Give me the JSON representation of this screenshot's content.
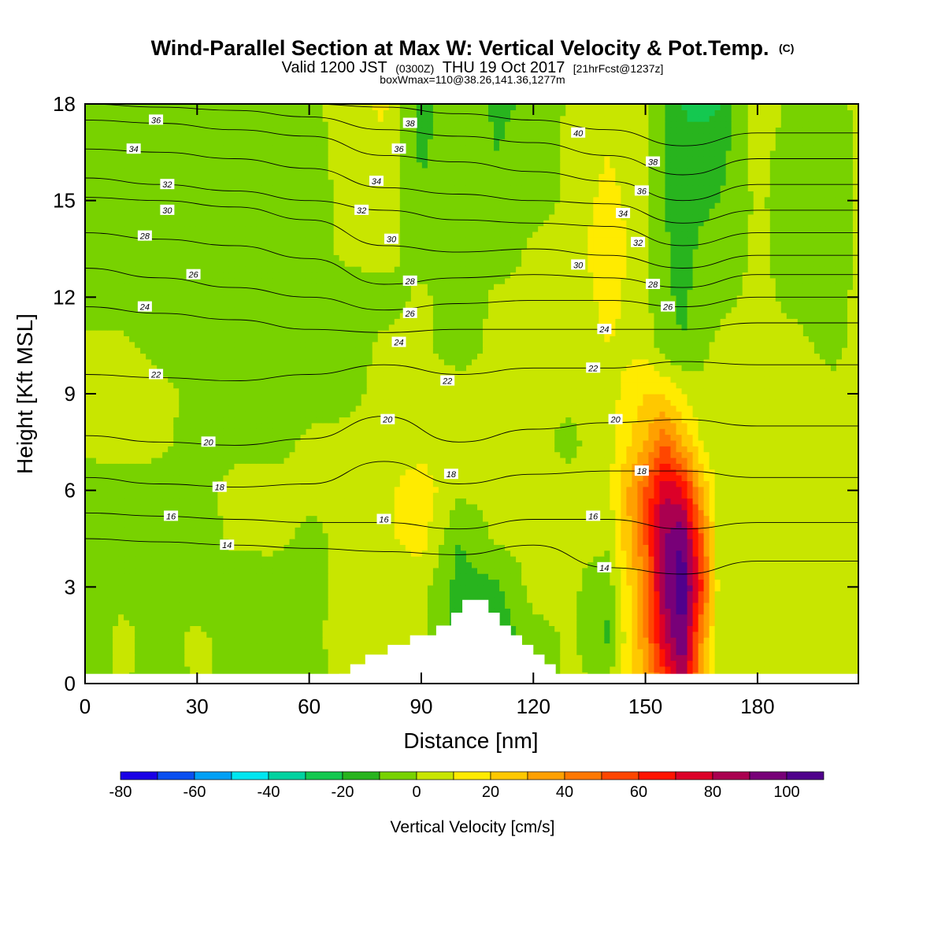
{
  "titles": {
    "main": "Wind-Parallel Section at Max W: Vertical Velocity & Pot.Temp.",
    "main_suffix": "(C)",
    "sub_part1": "Valid 1200 JST",
    "sub_part2": "(0300Z)",
    "sub_part3": "THU 19 Oct 2017",
    "sub_part4": "[21hrFcst@1237z]",
    "sub2": "boxWmax=110@38.26,141.36,1277m"
  },
  "chart_data": {
    "type": "heatmap",
    "title": "Wind-Parallel Section at Max W: Vertical Velocity & Pot.Temp. (C)",
    "xlabel": "Distance [nm]",
    "ylabel": "Height [Kft MSL]",
    "xlim": [
      0,
      207
    ],
    "ylim": [
      0,
      18
    ],
    "x_ticks": [
      0,
      30,
      60,
      90,
      120,
      150,
      180
    ],
    "y_ticks": [
      0,
      3,
      6,
      9,
      12,
      15,
      18
    ],
    "colorbar": {
      "title": "Vertical Velocity [cm/s]",
      "levels": [
        -80,
        -70,
        -60,
        -50,
        -40,
        -30,
        -20,
        -10,
        0,
        10,
        20,
        30,
        40,
        50,
        60,
        70,
        80,
        90,
        100
      ],
      "tick_labels": [
        "-80",
        "-60",
        "-40",
        "-20",
        "0",
        "20",
        "40",
        "60",
        "80",
        "100"
      ],
      "colors": [
        "#1a00e6",
        "#0a50f0",
        "#00a0f5",
        "#00e6f0",
        "#00d2a0",
        "#14c850",
        "#28b41e",
        "#78d200",
        "#c8e600",
        "#ffeb00",
        "#ffc800",
        "#ffa000",
        "#ff7800",
        "#ff4600",
        "#ff1400",
        "#dc0028",
        "#aa0050",
        "#780078",
        "#50008c"
      ]
    },
    "vertical_velocity_grid": {
      "x": [
        0,
        10,
        20,
        30,
        40,
        50,
        60,
        70,
        80,
        90,
        100,
        110,
        120,
        130,
        140,
        150,
        155,
        160,
        165,
        170,
        180,
        190,
        200,
        207
      ],
      "y": [
        0.3,
        1.5,
        3,
        4.5,
        6,
        7.5,
        9,
        10.5,
        12,
        13.5,
        15,
        16.5,
        18
      ],
      "values_cm_s": [
        [
          -4,
          2,
          -6,
          2,
          -4,
          -4,
          -4,
          4,
          2,
          2,
          -6,
          -8,
          -4,
          2,
          -2,
          30,
          60,
          90,
          30,
          2,
          2,
          2,
          2,
          2
        ],
        [
          -4,
          2,
          -4,
          2,
          -4,
          -4,
          -4,
          6,
          4,
          2,
          -12,
          -18,
          -4,
          2,
          -12,
          40,
          80,
          100,
          40,
          2,
          2,
          2,
          2,
          2
        ],
        [
          -6,
          -2,
          -4,
          -6,
          -6,
          -4,
          -4,
          4,
          6,
          4,
          -14,
          -12,
          4,
          2,
          -6,
          40,
          90,
          110,
          60,
          2,
          2,
          2,
          2,
          2
        ],
        [
          -6,
          -4,
          -6,
          -6,
          2,
          2,
          -2,
          2,
          8,
          14,
          -10,
          2,
          2,
          2,
          2,
          50,
          90,
          100,
          50,
          2,
          2,
          2,
          2,
          2
        ],
        [
          -4,
          -4,
          -4,
          -4,
          4,
          4,
          2,
          2,
          8,
          16,
          2,
          2,
          2,
          2,
          6,
          50,
          80,
          70,
          30,
          2,
          2,
          2,
          2,
          2
        ],
        [
          2,
          4,
          2,
          -4,
          -4,
          -4,
          2,
          2,
          4,
          6,
          2,
          2,
          2,
          -2,
          6,
          30,
          50,
          30,
          10,
          2,
          2,
          2,
          2,
          2
        ],
        [
          6,
          6,
          4,
          -4,
          -4,
          -6,
          -4,
          -2,
          2,
          2,
          4,
          2,
          2,
          2,
          6,
          20,
          20,
          10,
          2,
          2,
          2,
          2,
          2,
          2
        ],
        [
          2,
          2,
          -4,
          -6,
          -4,
          -6,
          -6,
          -4,
          2,
          2,
          -4,
          2,
          2,
          2,
          10,
          6,
          -6,
          -10,
          -2,
          2,
          2,
          2,
          -2,
          2
        ],
        [
          -4,
          -4,
          -4,
          -6,
          -4,
          -6,
          -6,
          -4,
          -4,
          2,
          -6,
          2,
          2,
          2,
          14,
          2,
          -8,
          -12,
          -6,
          -2,
          2,
          -2,
          -4,
          2
        ],
        [
          -4,
          -4,
          -6,
          -8,
          -6,
          -4,
          -4,
          2,
          4,
          -4,
          -4,
          -6,
          2,
          4,
          18,
          2,
          -8,
          -14,
          -8,
          -6,
          2,
          -4,
          -6,
          2
        ],
        [
          -6,
          -6,
          -8,
          -8,
          -6,
          -4,
          -4,
          2,
          6,
          -8,
          -2,
          -8,
          -4,
          2,
          14,
          2,
          -10,
          -16,
          -12,
          -10,
          2,
          -6,
          -6,
          2
        ],
        [
          -6,
          -6,
          -8,
          -8,
          -6,
          -4,
          -4,
          4,
          8,
          -12,
          -2,
          -10,
          -6,
          2,
          10,
          2,
          -10,
          -18,
          -14,
          -14,
          4,
          -6,
          -6,
          2
        ],
        [
          -6,
          -6,
          -8,
          -8,
          -6,
          -4,
          -4,
          6,
          12,
          -14,
          -2,
          -12,
          -8,
          2,
          8,
          2,
          -8,
          -20,
          -24,
          -20,
          8,
          -4,
          -4,
          2
        ]
      ]
    },
    "potential_temperature_contours": [
      {
        "label": "14",
        "x": [
          0,
          20,
          40,
          60,
          80,
          100,
          120,
          140,
          160,
          180,
          207
        ],
        "y": [
          4.5,
          4.4,
          4.3,
          4.2,
          4.1,
          4.0,
          4.3,
          3.6,
          3.4,
          3.8,
          3.8
        ]
      },
      {
        "label": "16",
        "x": [
          0,
          20,
          40,
          60,
          80,
          100,
          120,
          140,
          160,
          180,
          207
        ],
        "y": [
          5.3,
          5.2,
          5.1,
          5.0,
          5.0,
          4.8,
          5.1,
          5.1,
          4.8,
          5.0,
          5.0
        ]
      },
      {
        "label": "18",
        "x": [
          0,
          20,
          40,
          60,
          80,
          100,
          120,
          140,
          160,
          180,
          207
        ],
        "y": [
          6.4,
          6.2,
          6.1,
          6.2,
          6.9,
          6.2,
          6.5,
          6.6,
          6.6,
          6.4,
          6.4
        ]
      },
      {
        "label": "20",
        "x": [
          0,
          20,
          40,
          60,
          80,
          100,
          120,
          140,
          160,
          180,
          207
        ],
        "y": [
          7.7,
          7.5,
          7.4,
          7.6,
          8.3,
          7.5,
          7.9,
          8.1,
          8.2,
          8.0,
          8.0
        ]
      },
      {
        "label": "22",
        "x": [
          0,
          20,
          40,
          60,
          80,
          100,
          120,
          140,
          160,
          180,
          207
        ],
        "y": [
          9.6,
          9.5,
          9.4,
          9.6,
          9.9,
          9.6,
          9.8,
          9.8,
          10.0,
          9.9,
          9.9
        ]
      },
      {
        "label": "24",
        "x": [
          0,
          20,
          40,
          60,
          80,
          100,
          120,
          140,
          160,
          180,
          207
        ],
        "y": [
          11.7,
          11.5,
          11.3,
          11.0,
          10.9,
          11.0,
          11.0,
          11.0,
          11.0,
          11.2,
          11.2
        ]
      },
      {
        "label": "26",
        "x": [
          0,
          20,
          40,
          60,
          80,
          100,
          120,
          140,
          160,
          180,
          207
        ],
        "y": [
          12.9,
          12.6,
          12.3,
          12.0,
          11.6,
          11.8,
          11.9,
          11.9,
          11.7,
          12.0,
          12.0
        ]
      },
      {
        "label": "28",
        "x": [
          0,
          20,
          40,
          60,
          80,
          100,
          120,
          140,
          160,
          180,
          207
        ],
        "y": [
          14.0,
          13.8,
          13.6,
          13.2,
          12.4,
          12.6,
          12.7,
          12.6,
          12.3,
          12.7,
          12.7
        ]
      },
      {
        "label": "30",
        "x": [
          0,
          20,
          40,
          60,
          80,
          100,
          120,
          140,
          160,
          180,
          207
        ],
        "y": [
          15.1,
          15.0,
          14.8,
          14.4,
          13.6,
          13.4,
          13.5,
          13.3,
          12.9,
          13.3,
          13.3
        ]
      },
      {
        "label": "32",
        "x": [
          0,
          20,
          40,
          60,
          80,
          100,
          120,
          140,
          160,
          180,
          207
        ],
        "y": [
          15.7,
          15.5,
          15.3,
          15.0,
          14.7,
          14.4,
          14.3,
          14.2,
          13.6,
          14.0,
          14.0
        ]
      },
      {
        "label": "34",
        "x": [
          0,
          20,
          40,
          60,
          80,
          100,
          120,
          140,
          160,
          180,
          207
        ],
        "y": [
          16.6,
          16.5,
          16.3,
          16.0,
          15.4,
          15.2,
          15.0,
          14.9,
          14.3,
          14.7,
          14.7
        ]
      },
      {
        "label": "36",
        "x": [
          0,
          20,
          40,
          60,
          80,
          100,
          120,
          140,
          160,
          180,
          207
        ],
        "y": [
          17.5,
          17.4,
          17.2,
          17.0,
          16.4,
          16.2,
          15.9,
          15.6,
          15.0,
          15.5,
          15.5
        ]
      },
      {
        "label": "38",
        "x": [
          0,
          20,
          40,
          60,
          80,
          100,
          120,
          140,
          160,
          180,
          207
        ],
        "y": [
          18.0,
          17.9,
          17.8,
          17.6,
          17.2,
          17.0,
          16.8,
          16.4,
          15.8,
          16.3,
          16.3
        ]
      },
      {
        "label": "40",
        "x": [
          0,
          20,
          40,
          60,
          80,
          100,
          120,
          140,
          160,
          180,
          207
        ],
        "y": [
          18.3,
          18.2,
          18.1,
          18.0,
          17.9,
          17.7,
          17.5,
          17.2,
          16.7,
          17.1,
          17.1
        ]
      }
    ],
    "contour_labels": [
      {
        "text": "36",
        "x": 19,
        "y": 17.5
      },
      {
        "text": "34",
        "x": 13,
        "y": 16.6
      },
      {
        "text": "32",
        "x": 22,
        "y": 15.5
      },
      {
        "text": "30",
        "x": 22,
        "y": 14.7
      },
      {
        "text": "28",
        "x": 16,
        "y": 13.9
      },
      {
        "text": "26",
        "x": 29,
        "y": 12.7
      },
      {
        "text": "24",
        "x": 16,
        "y": 11.7
      },
      {
        "text": "22",
        "x": 19,
        "y": 9.6
      },
      {
        "text": "20",
        "x": 33,
        "y": 7.5
      },
      {
        "text": "18",
        "x": 36,
        "y": 6.1
      },
      {
        "text": "16",
        "x": 23,
        "y": 5.2
      },
      {
        "text": "14",
        "x": 38,
        "y": 4.3
      },
      {
        "text": "38",
        "x": 87,
        "y": 17.4
      },
      {
        "text": "36",
        "x": 84,
        "y": 16.6
      },
      {
        "text": "34",
        "x": 78,
        "y": 15.6
      },
      {
        "text": "32",
        "x": 74,
        "y": 14.7
      },
      {
        "text": "30",
        "x": 82,
        "y": 13.8
      },
      {
        "text": "28",
        "x": 87,
        "y": 12.5
      },
      {
        "text": "26",
        "x": 87,
        "y": 11.5
      },
      {
        "text": "24",
        "x": 84,
        "y": 10.6
      },
      {
        "text": "22",
        "x": 97,
        "y": 9.4
      },
      {
        "text": "20",
        "x": 81,
        "y": 8.2
      },
      {
        "text": "18",
        "x": 98,
        "y": 6.5
      },
      {
        "text": "16",
        "x": 80,
        "y": 5.1
      },
      {
        "text": "40",
        "x": 132,
        "y": 17.1
      },
      {
        "text": "38",
        "x": 152,
        "y": 16.2
      },
      {
        "text": "36",
        "x": 149,
        "y": 15.3
      },
      {
        "text": "34",
        "x": 144,
        "y": 14.6
      },
      {
        "text": "32",
        "x": 148,
        "y": 13.7
      },
      {
        "text": "30",
        "x": 132,
        "y": 13.0
      },
      {
        "text": "28",
        "x": 152,
        "y": 12.4
      },
      {
        "text": "26",
        "x": 156,
        "y": 11.7
      },
      {
        "text": "24",
        "x": 139,
        "y": 11.0
      },
      {
        "text": "22",
        "x": 136,
        "y": 9.8
      },
      {
        "text": "20",
        "x": 142,
        "y": 8.2
      },
      {
        "text": "18",
        "x": 149,
        "y": 6.6
      },
      {
        "text": "16",
        "x": 136,
        "y": 5.2
      },
      {
        "text": "14",
        "x": 139,
        "y": 3.6
      }
    ],
    "terrain": {
      "x": [
        68,
        71,
        71,
        75,
        75,
        81,
        81,
        87,
        87,
        94,
        94,
        98,
        98,
        101,
        101,
        108,
        108,
        111,
        111,
        114,
        114,
        117,
        117,
        120,
        120,
        123,
        123,
        126,
        126
      ],
      "y": [
        0.3,
        0.3,
        0.6,
        0.6,
        0.9,
        0.9,
        1.2,
        1.2,
        1.5,
        1.5,
        1.8,
        1.8,
        2.2,
        2.2,
        2.6,
        2.6,
        2.2,
        2.2,
        1.8,
        1.8,
        1.5,
        1.5,
        1.2,
        1.2,
        0.9,
        0.9,
        0.6,
        0.6,
        0.3
      ]
    }
  }
}
